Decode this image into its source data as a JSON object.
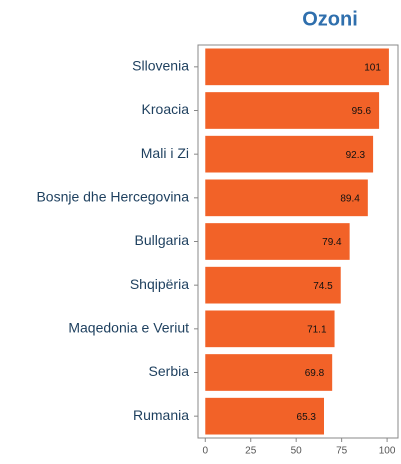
{
  "chart_data": {
    "type": "bar",
    "orientation": "horizontal",
    "title": "Ozoni",
    "categories": [
      "Sllovenia",
      "Kroacia",
      "Mali i Zi",
      "Bosnje dhe Hercegovina",
      "Bullgaria",
      "Shqipëria",
      "Maqedonia e Veriut",
      "Serbia",
      "Rumania"
    ],
    "values": [
      101,
      95.6,
      92.3,
      89.4,
      79.4,
      74.5,
      71.1,
      69.8,
      65.3
    ],
    "color": "#f26228",
    "xlim": [
      -4,
      106
    ],
    "xticks": [
      0,
      25,
      50,
      75,
      100
    ]
  }
}
